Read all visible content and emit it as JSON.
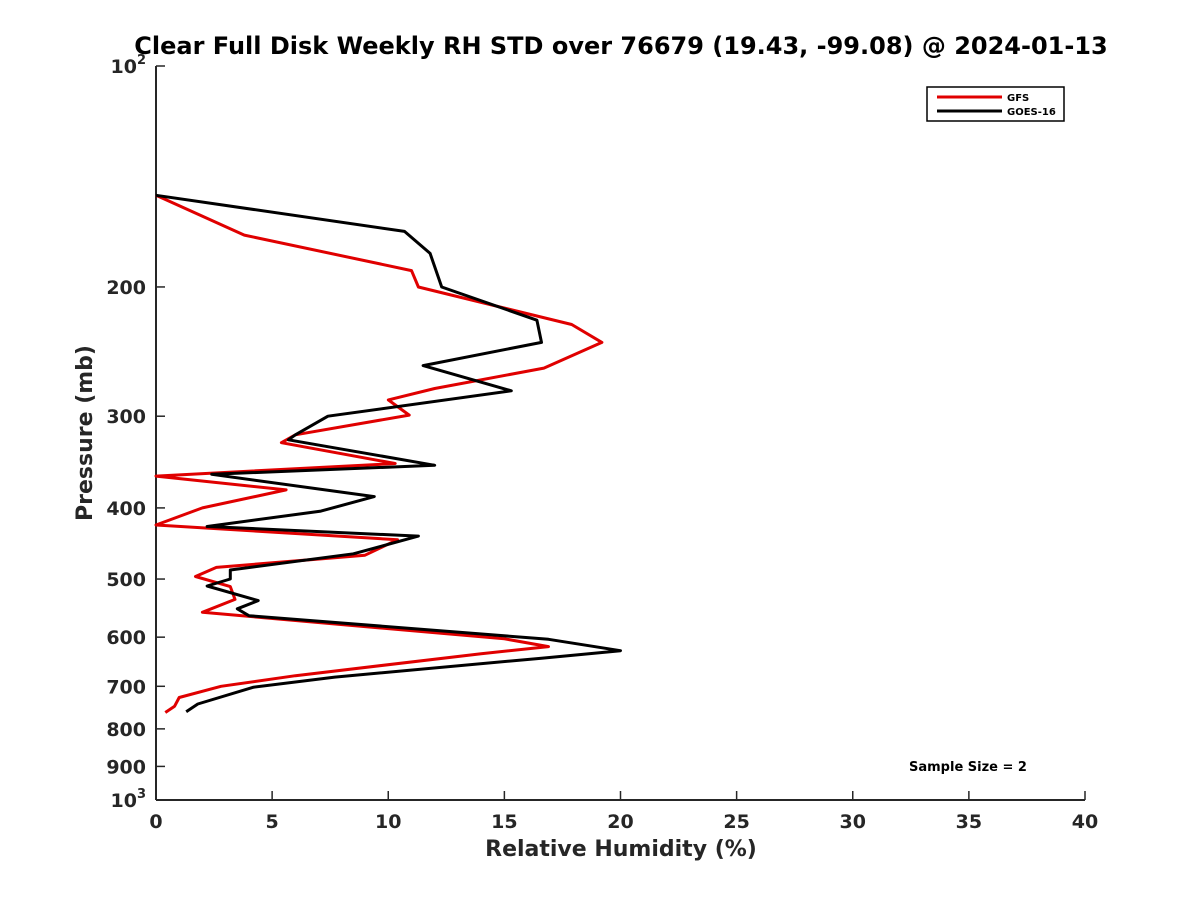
{
  "chart_data": {
    "type": "line",
    "title": "Clear Full Disk Weekly RH STD over 76679 (19.43, -99.08) @ 2024-01-13",
    "xlabel": "Relative Humidity (%)",
    "ylabel": "Pressure (mb)",
    "xlim": [
      0,
      40
    ],
    "ylim": [
      1000,
      100
    ],
    "y_scale": "log",
    "y_reversed": true,
    "x_ticks": [
      "0",
      "5",
      "10",
      "15",
      "20",
      "25",
      "30",
      "35",
      "40"
    ],
    "y_ticks": [
      {
        "value": 100,
        "base": "10",
        "exp": "2"
      },
      {
        "value": 200,
        "label": "200"
      },
      {
        "value": 300,
        "label": "300"
      },
      {
        "value": 400,
        "label": "400"
      },
      {
        "value": 500,
        "label": "500"
      },
      {
        "value": 600,
        "label": "600"
      },
      {
        "value": 700,
        "label": "700"
      },
      {
        "value": 800,
        "label": "800"
      },
      {
        "value": 900,
        "label": "900"
      },
      {
        "value": 1000,
        "base": "10",
        "exp": "3"
      }
    ],
    "legend_position": "top-right",
    "annotation": "Sample Size = 2",
    "series": [
      {
        "name": "GFS",
        "color": "#e00000",
        "points": [
          [
            0.0,
            150
          ],
          [
            3.8,
            170
          ],
          [
            11.0,
            190
          ],
          [
            11.3,
            200
          ],
          [
            17.9,
            225
          ],
          [
            19.2,
            238
          ],
          [
            16.7,
            258
          ],
          [
            12.0,
            275
          ],
          [
            10.0,
            285
          ],
          [
            10.9,
            299
          ],
          [
            6.0,
            318
          ],
          [
            5.4,
            326
          ],
          [
            10.3,
            348
          ],
          [
            0.0,
            362
          ],
          [
            5.6,
            378
          ],
          [
            2.0,
            400
          ],
          [
            0.0,
            422
          ],
          [
            10.4,
            442
          ],
          [
            9.0,
            464
          ],
          [
            2.6,
            482
          ],
          [
            1.7,
            496
          ],
          [
            3.2,
            512
          ],
          [
            3.4,
            533
          ],
          [
            2.0,
            555
          ],
          [
            15.0,
            603
          ],
          [
            16.9,
            618
          ],
          [
            14.0,
            632
          ],
          [
            6.0,
            677
          ],
          [
            2.8,
            700
          ],
          [
            1.0,
            725
          ],
          [
            0.8,
            745
          ],
          [
            0.4,
            760
          ]
        ]
      },
      {
        "name": "GOES-16",
        "color": "#000000",
        "points": [
          [
            0.0,
            150
          ],
          [
            10.7,
            168
          ],
          [
            11.8,
            180
          ],
          [
            12.3,
            200
          ],
          [
            16.4,
            222
          ],
          [
            16.6,
            238
          ],
          [
            11.5,
            256
          ],
          [
            15.3,
            277
          ],
          [
            7.4,
            300
          ],
          [
            6.0,
            318
          ],
          [
            5.7,
            323
          ],
          [
            12.0,
            350
          ],
          [
            2.4,
            360
          ],
          [
            9.4,
            386
          ],
          [
            7.1,
            404
          ],
          [
            2.2,
            424
          ],
          [
            11.3,
            437
          ],
          [
            8.5,
            462
          ],
          [
            3.2,
            486
          ],
          [
            3.2,
            500
          ],
          [
            2.2,
            511
          ],
          [
            4.4,
            535
          ],
          [
            3.5,
            549
          ],
          [
            4.0,
            561
          ],
          [
            16.9,
            604
          ],
          [
            20.0,
            626
          ],
          [
            16.6,
            641
          ],
          [
            7.7,
            680
          ],
          [
            4.2,
            702
          ],
          [
            1.8,
            740
          ],
          [
            1.3,
            758
          ]
        ]
      }
    ]
  }
}
